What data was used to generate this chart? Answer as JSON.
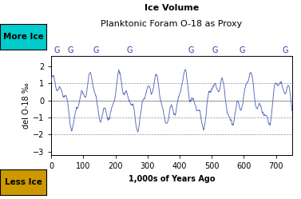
{
  "title_bold": "Ice Volume",
  "title_main": "Planktonic Foram O-18 as Proxy",
  "xlabel": "1,000s of Years Ago",
  "ylabel": "del O-18 ‰",
  "xlim": [
    0,
    750
  ],
  "ylim": [
    -3.2,
    2.6
  ],
  "yticks": [
    -3,
    -2,
    -1,
    0,
    1,
    2
  ],
  "xticks": [
    0,
    100,
    200,
    300,
    400,
    500,
    600,
    700
  ],
  "dashed_lines": [
    -2,
    -1,
    0,
    1
  ],
  "line_color": "#5566bb",
  "background_color": "#ffffff",
  "more_ice_label": "More Ice",
  "less_ice_label": "Less Ice",
  "more_ice_bg": "#00cccc",
  "less_ice_bg": "#cc9900",
  "glacial_label": "G",
  "glacial_positions": [
    18,
    60,
    140,
    245,
    435,
    510,
    595,
    730
  ],
  "title_fontsize": 8,
  "label_fontsize": 7,
  "tick_fontsize": 7,
  "g_fontsize": 7
}
